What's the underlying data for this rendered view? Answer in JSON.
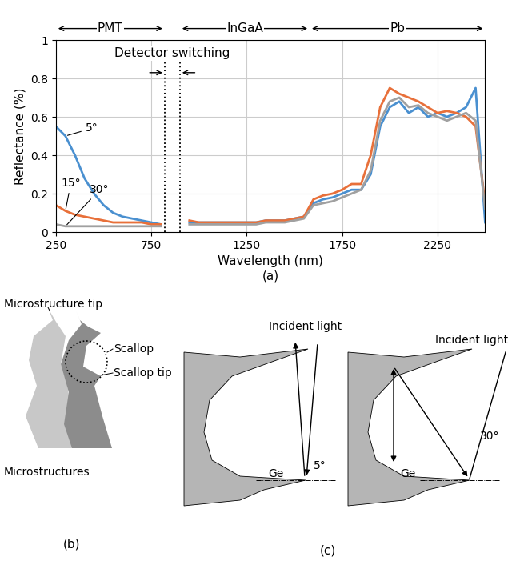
{
  "chart_data": {
    "type": "line",
    "x_label": "Wavelength (nm)",
    "y_label": "Reflectance (%)",
    "panel_label": "(a)",
    "x": [
      250,
      300,
      350,
      400,
      450,
      500,
      550,
      600,
      650,
      700,
      750,
      800,
      850,
      900,
      950,
      1000,
      1050,
      1100,
      1150,
      1200,
      1250,
      1300,
      1350,
      1400,
      1450,
      1500,
      1550,
      1600,
      1650,
      1700,
      1750,
      1800,
      1850,
      1900,
      1950,
      2000,
      2050,
      2100,
      2150,
      2200,
      2250,
      2300,
      2350,
      2400,
      2450,
      2500
    ],
    "series": [
      {
        "name": "5°",
        "color": "#4a90d0",
        "values": [
          0.55,
          0.5,
          0.4,
          0.28,
          0.2,
          0.14,
          0.1,
          0.08,
          0.07,
          0.06,
          0.05,
          0.04,
          null,
          null,
          0.05,
          0.05,
          0.05,
          0.05,
          0.05,
          0.05,
          0.05,
          0.05,
          0.06,
          0.06,
          0.06,
          0.07,
          0.08,
          0.15,
          0.17,
          0.18,
          0.2,
          0.22,
          0.22,
          0.3,
          0.55,
          0.65,
          0.68,
          0.62,
          0.65,
          0.6,
          0.62,
          0.6,
          0.62,
          0.65,
          0.75,
          0.05
        ]
      },
      {
        "name": "15°",
        "color": "#e8703a",
        "values": [
          0.14,
          0.11,
          0.09,
          0.08,
          0.07,
          0.06,
          0.05,
          0.05,
          0.05,
          0.05,
          0.04,
          0.04,
          null,
          null,
          0.06,
          0.05,
          0.05,
          0.05,
          0.05,
          0.05,
          0.05,
          0.05,
          0.06,
          0.06,
          0.06,
          0.07,
          0.08,
          0.17,
          0.19,
          0.2,
          0.22,
          0.25,
          0.25,
          0.4,
          0.65,
          0.75,
          0.72,
          0.7,
          0.68,
          0.65,
          0.62,
          0.63,
          0.62,
          0.6,
          0.55,
          0.15
        ]
      },
      {
        "name": "30°",
        "color": "#a0a0a0",
        "values": [
          0.04,
          0.03,
          0.03,
          0.03,
          0.03,
          0.03,
          0.03,
          0.03,
          0.03,
          0.03,
          0.03,
          0.03,
          null,
          null,
          0.04,
          0.04,
          0.04,
          0.04,
          0.04,
          0.04,
          0.04,
          0.04,
          0.05,
          0.05,
          0.05,
          0.06,
          0.07,
          0.14,
          0.15,
          0.16,
          0.18,
          0.2,
          0.22,
          0.32,
          0.58,
          0.68,
          0.7,
          0.65,
          0.66,
          0.62,
          0.6,
          0.58,
          0.6,
          0.62,
          0.58,
          0.12
        ]
      }
    ],
    "regions": [
      {
        "name": "PMT",
        "range": [
          250,
          820
        ]
      },
      {
        "name": "InGaA",
        "range": [
          900,
          1580
        ]
      },
      {
        "name": "Pb",
        "range": [
          1580,
          2500
        ]
      }
    ],
    "annotations": [
      {
        "text": "Detector switching",
        "range": [
          820,
          900
        ]
      }
    ],
    "xlim": [
      250,
      2500
    ],
    "xticks": [
      250,
      750,
      1250,
      1750,
      2250
    ],
    "ylim": [
      0,
      1
    ],
    "yticks": [
      0,
      0.2,
      0.4,
      0.6,
      0.8,
      1
    ],
    "grid": true
  },
  "diagram": {
    "b": {
      "texts": [
        "Microstructure tip",
        "Scallop",
        "Scallop tip",
        "Microstructures"
      ],
      "panel_label": "(b)"
    },
    "c": {
      "panels": [
        {
          "incident": "Incident light",
          "angle": "5°",
          "material": "Ge"
        },
        {
          "incident": "Incident light",
          "angle": "30°",
          "material": "Ge"
        }
      ],
      "panel_label": "(c)"
    }
  }
}
